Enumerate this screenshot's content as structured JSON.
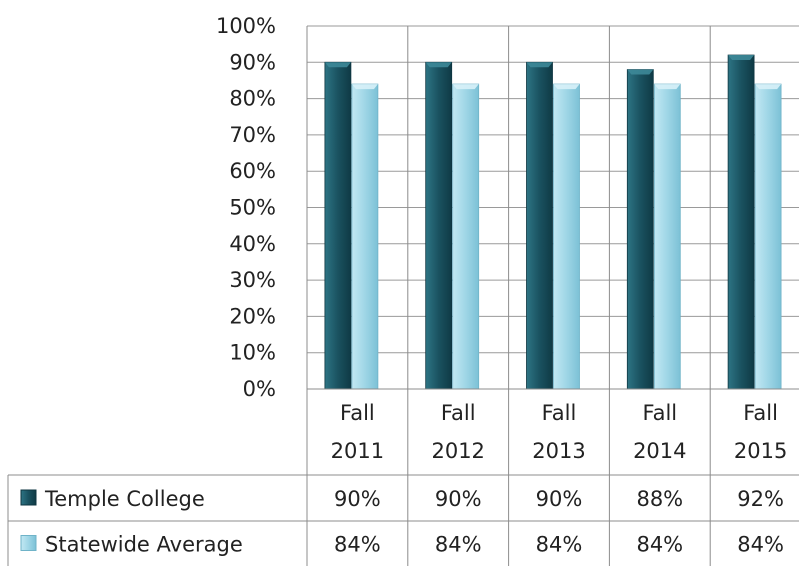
{
  "chart_data": {
    "type": "bar",
    "categories": [
      "Fall 2011",
      "Fall 2012",
      "Fall 2013",
      "Fall 2014",
      "Fall 2015"
    ],
    "category_lines": [
      [
        "Fall",
        "2011"
      ],
      [
        "Fall",
        "2012"
      ],
      [
        "Fall",
        "2013"
      ],
      [
        "Fall",
        "2014"
      ],
      [
        "Fall",
        "2015"
      ]
    ],
    "series": [
      {
        "name": "Temple College",
        "values": [
          90,
          90,
          90,
          88,
          92
        ],
        "labels": [
          "90%",
          "90%",
          "90%",
          "88%",
          "92%"
        ],
        "color": "#1d5866"
      },
      {
        "name": "Statewide Average",
        "values": [
          84,
          84,
          84,
          84,
          84
        ],
        "labels": [
          "84%",
          "84%",
          "84%",
          "84%",
          "84%"
        ],
        "color": "#9fd6e6"
      }
    ],
    "y_ticks": [
      "0%",
      "10%",
      "20%",
      "30%",
      "40%",
      "50%",
      "60%",
      "70%",
      "80%",
      "90%",
      "100%"
    ],
    "ylim": [
      0,
      100
    ],
    "grid": true,
    "legend": "data-table"
  }
}
